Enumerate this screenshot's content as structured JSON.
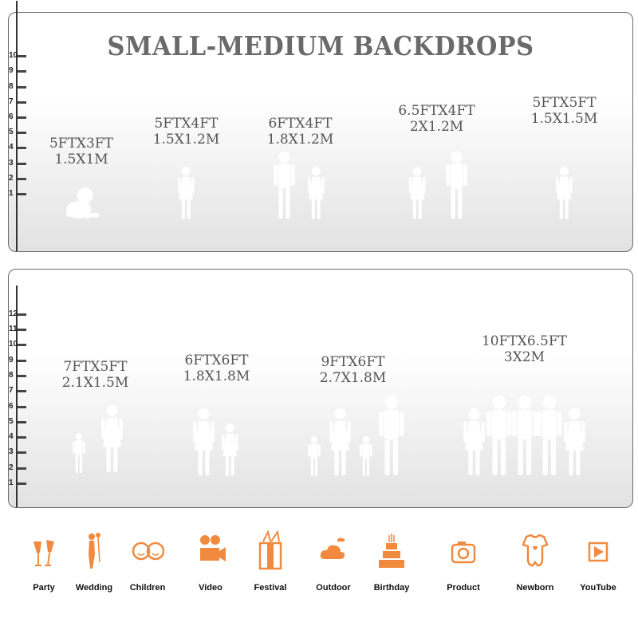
{
  "title": "SMALL-MEDIUM BACKDROPS",
  "colors": {
    "accent": "#f3914a",
    "text": "#555555"
  },
  "panels": [
    {
      "ruler": [
        "1",
        "2",
        "3",
        "4",
        "5",
        "6",
        "7",
        "8",
        "9",
        "10"
      ],
      "backdrops": [
        {
          "ft": "5FTX3FT",
          "m": "1.5X1M",
          "figures": [
            "baby"
          ]
        },
        {
          "ft": "5FTX4FT",
          "m": "1.5X1.2M",
          "figures": [
            "girl"
          ]
        },
        {
          "ft": "6FTX4FT",
          "m": "1.8X1.2M",
          "figures": [
            "boy",
            "girl"
          ]
        },
        {
          "ft": "6.5FTX4FT",
          "m": "2X1.2M",
          "figures": [
            "girl",
            "boy"
          ]
        },
        {
          "ft": "5FTX5FT",
          "m": "1.5X1.5M",
          "figures": [
            "girl"
          ]
        }
      ]
    },
    {
      "ruler": [
        "1",
        "2",
        "3",
        "4",
        "5",
        "6",
        "7",
        "8",
        "9",
        "10",
        "11",
        "12"
      ],
      "backdrops": [
        {
          "ft": "7FTX5FT",
          "m": "2.1X1.5M",
          "figures": [
            "child",
            "woman"
          ]
        },
        {
          "ft": "6FTX6FT",
          "m": "1.8X1.8M",
          "figures": [
            "woman",
            "girl"
          ]
        },
        {
          "ft": "9FTX6FT",
          "m": "2.7X1.8M",
          "figures": [
            "child",
            "woman",
            "child",
            "man"
          ]
        },
        {
          "ft": "10FTX6.5FT",
          "m": "3X2M",
          "figures": [
            "woman",
            "man",
            "man",
            "man",
            "woman"
          ]
        }
      ]
    }
  ],
  "uses": [
    {
      "label": "Party",
      "icon": "champagne-glasses-icon"
    },
    {
      "label": "Wedding",
      "icon": "wedding-couple-icon"
    },
    {
      "label": "Children",
      "icon": "children-faces-icon"
    },
    {
      "label": "Video",
      "icon": "movie-camera-icon"
    },
    {
      "label": "Festival",
      "icon": "gift-box-icon"
    },
    {
      "label": "Outdoor",
      "icon": "cloud-icon"
    },
    {
      "label": "Birthday",
      "icon": "birthday-cake-icon"
    },
    {
      "label": "Product",
      "icon": "camera-icon"
    },
    {
      "label": "Newborn",
      "icon": "baby-onesie-icon"
    },
    {
      "label": "YouTube",
      "icon": "play-button-icon"
    }
  ]
}
